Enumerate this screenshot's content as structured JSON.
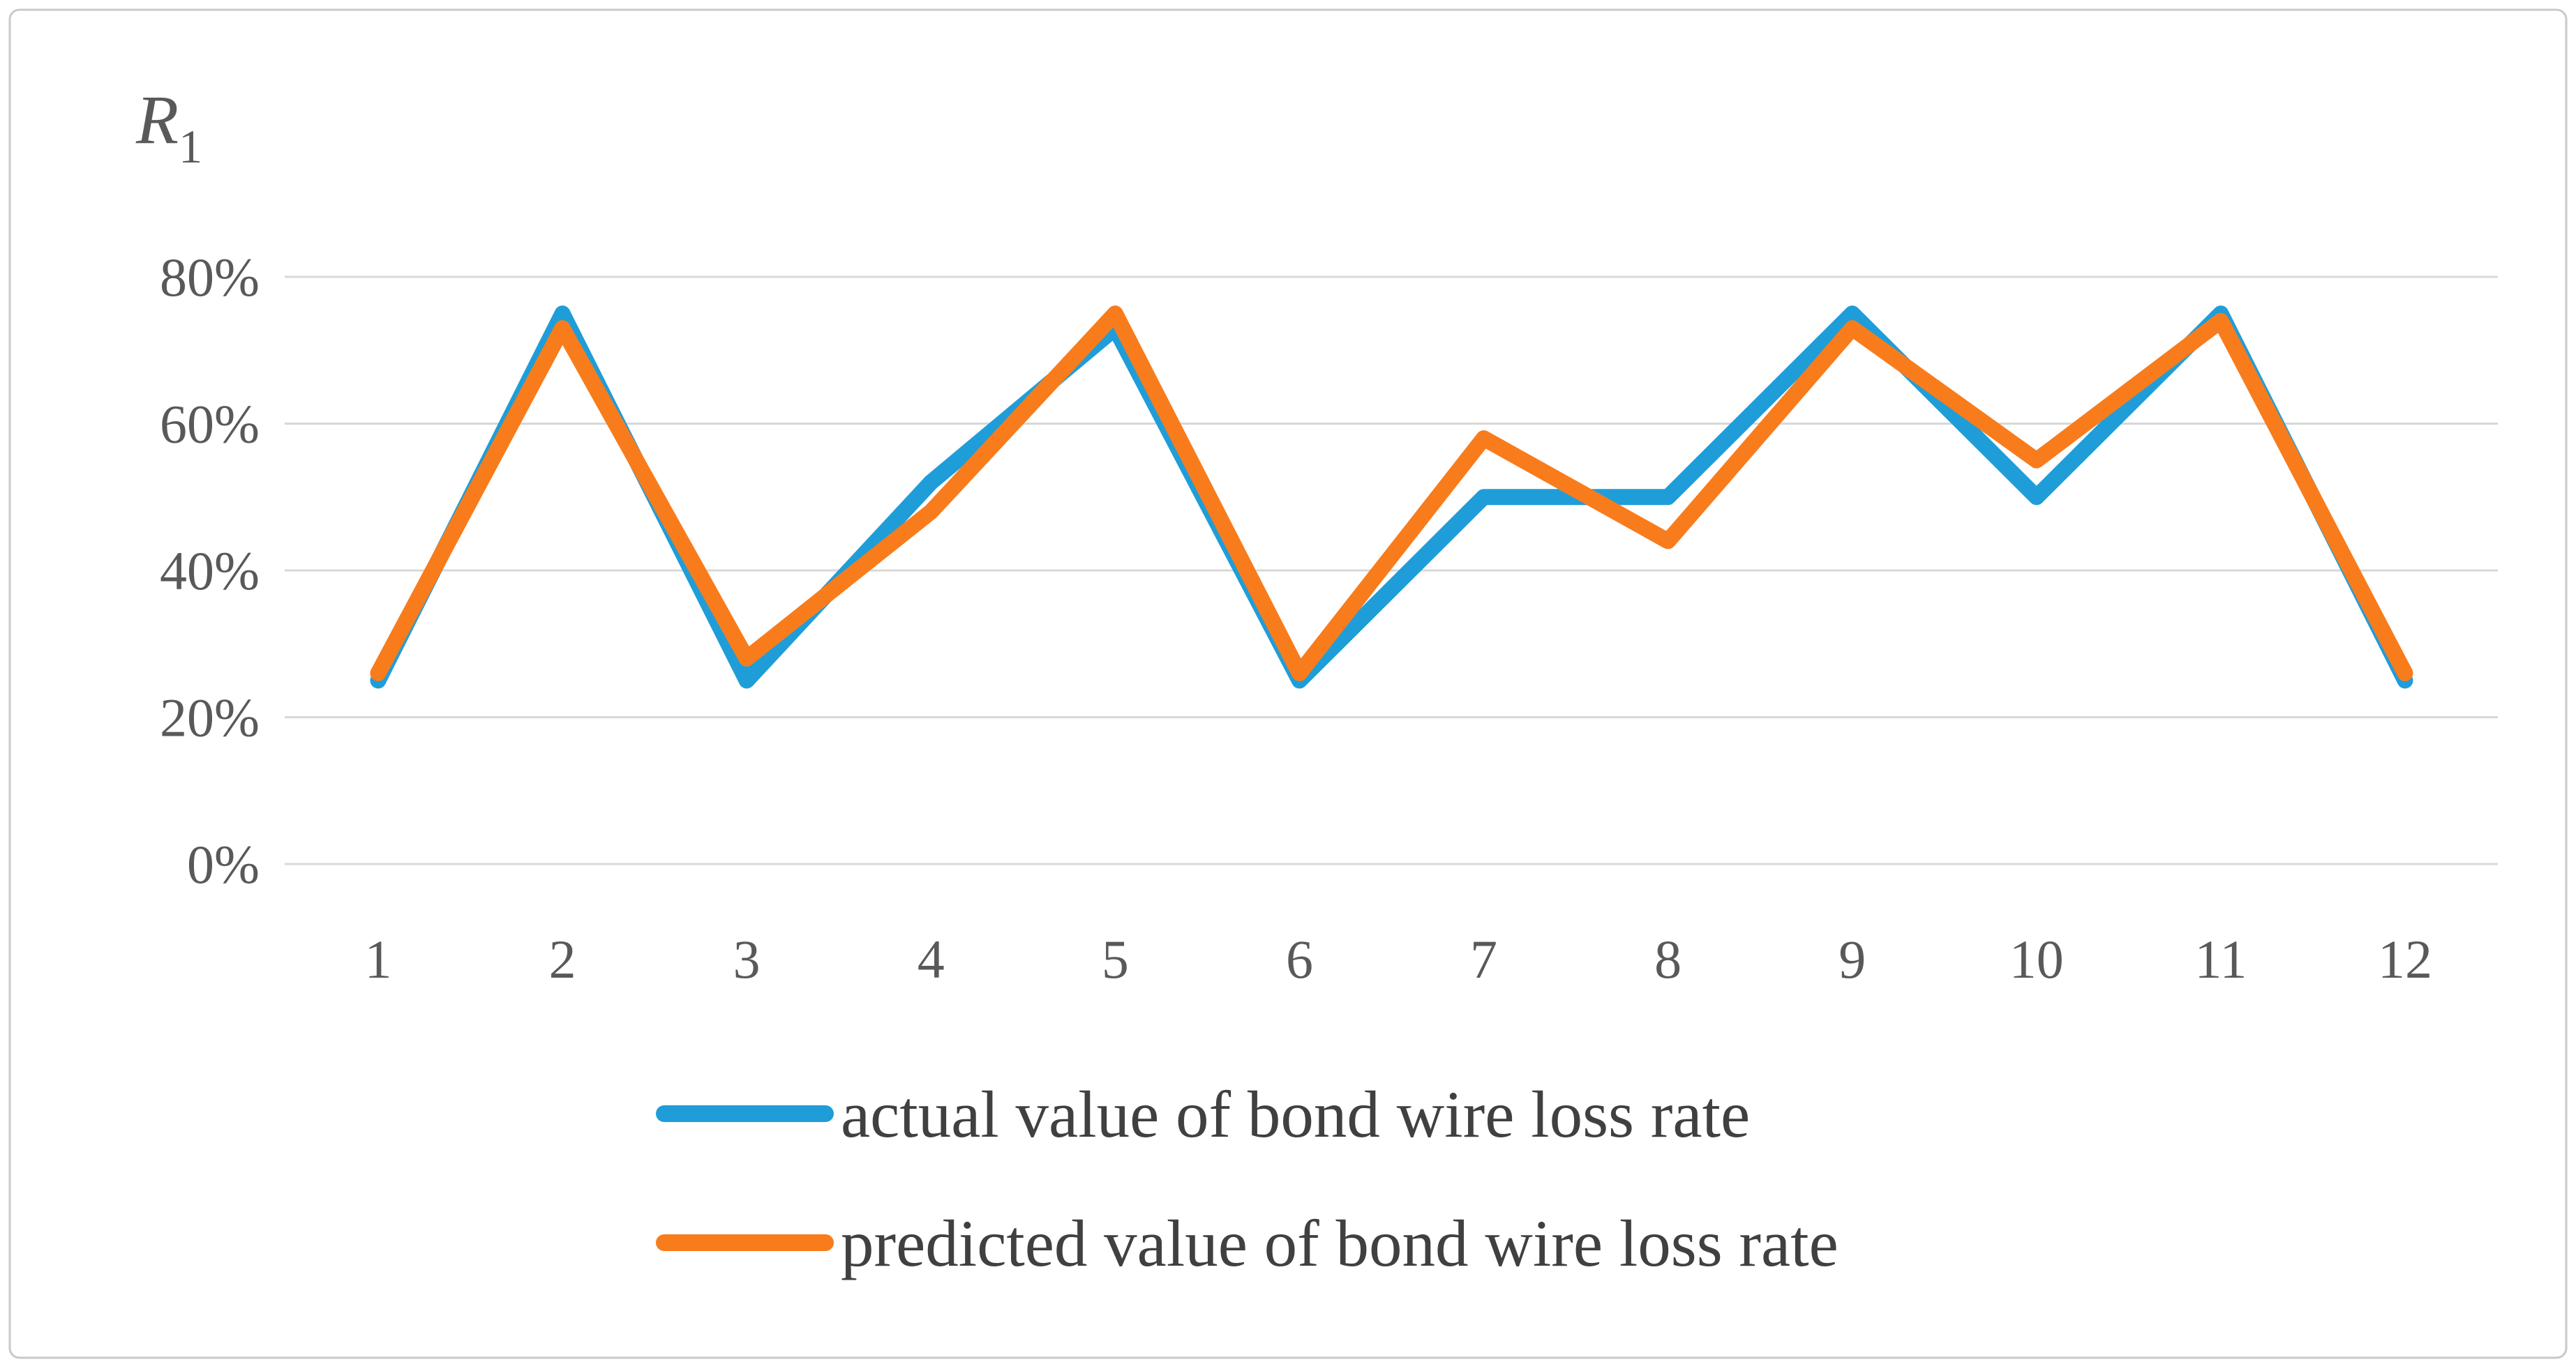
{
  "chart": {
    "y_axis_symbol": "R",
    "y_axis_symbol_subscript": "1"
  },
  "chart_data": {
    "type": "line",
    "title": "",
    "categories": [
      "1",
      "2",
      "3",
      "4",
      "5",
      "6",
      "7",
      "8",
      "9",
      "10",
      "11",
      "12"
    ],
    "series": [
      {
        "name": "actual value of bond wire loss rate",
        "color": "#1F9DD9",
        "values": [
          25,
          75,
          25,
          52,
          73,
          25,
          50,
          50,
          75,
          50,
          75,
          25
        ]
      },
      {
        "name": "predicted value of bond wire loss rate",
        "color": "#F87C1C",
        "values": [
          26,
          73,
          28,
          48,
          75,
          26,
          58,
          44,
          73,
          55,
          74,
          26
        ]
      }
    ],
    "x_axis": {
      "tick_labels": [
        "1",
        "2",
        "3",
        "4",
        "5",
        "6",
        "7",
        "8",
        "9",
        "10",
        "11",
        "12"
      ]
    },
    "y_axis": {
      "tick_labels": [
        "80%",
        "60%",
        "40%",
        "20%",
        "0%"
      ],
      "tick_values": [
        80,
        60,
        40,
        20,
        0
      ],
      "range": [
        0,
        88
      ],
      "format": "percent",
      "gridlines": true
    },
    "legend": {
      "position": "bottom"
    }
  },
  "colors": {
    "background": "#FFFFFF",
    "border": "#C9C9C9",
    "grid": "#D8D8D8",
    "axis_text": "#595959",
    "legend_text": "#404040"
  }
}
